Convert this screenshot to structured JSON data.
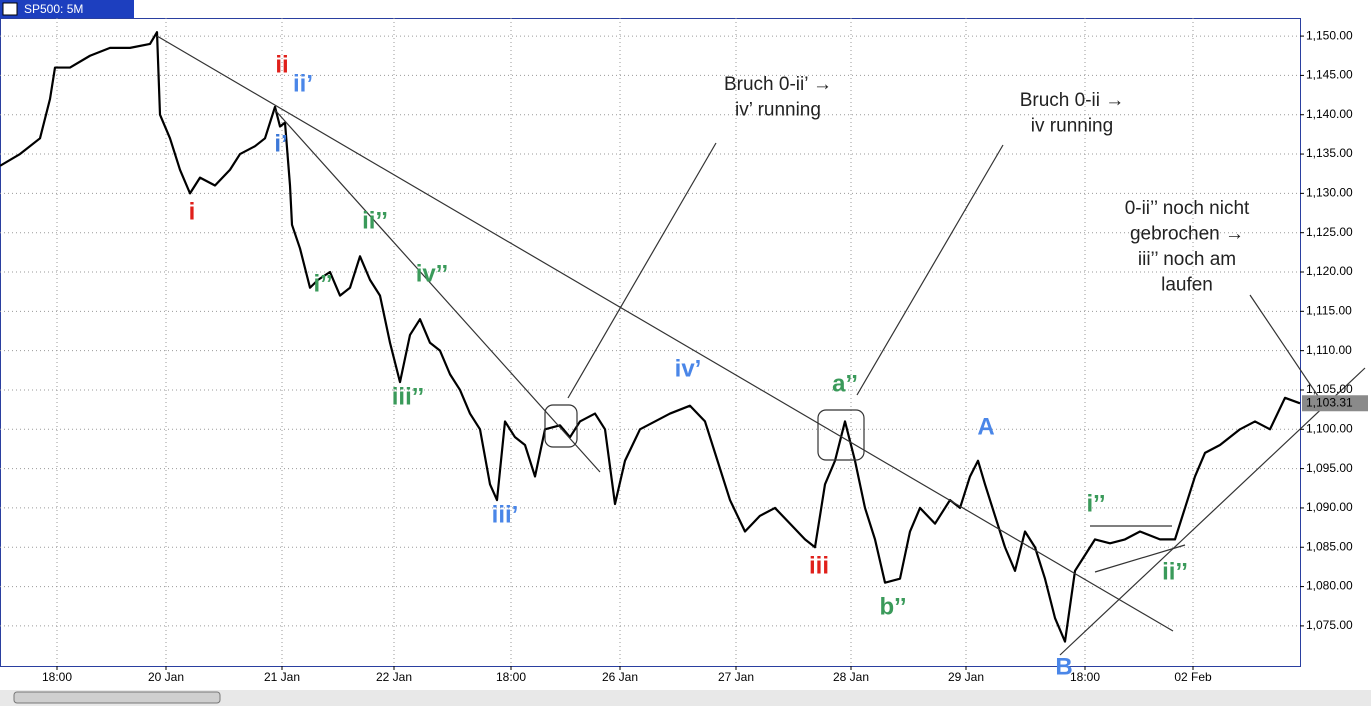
{
  "chart_data": {
    "type": "line",
    "title": "SP500: 5M",
    "ylim": [
      1069.9,
      1152.3
    ],
    "yticks": [
      {
        "value": 1075,
        "label": "1,075.00"
      },
      {
        "value": 1080,
        "label": "1,080.00"
      },
      {
        "value": 1085,
        "label": "1,085.00"
      },
      {
        "value": 1090,
        "label": "1,090.00"
      },
      {
        "value": 1095,
        "label": "1,095.00"
      },
      {
        "value": 1100,
        "label": "1,100.00"
      },
      {
        "value": 1105,
        "label": "1,105.00"
      },
      {
        "value": 1110,
        "label": "1,110.00"
      },
      {
        "value": 1115,
        "label": "1,115.00"
      },
      {
        "value": 1120,
        "label": "1,120.00"
      },
      {
        "value": 1125,
        "label": "1,125.00"
      },
      {
        "value": 1130,
        "label": "1,130.00"
      },
      {
        "value": 1135,
        "label": "1,135.00"
      },
      {
        "value": 1140,
        "label": "1,140.00"
      },
      {
        "value": 1145,
        "label": "1,145.00"
      },
      {
        "value": 1150,
        "label": "1,150.00"
      }
    ],
    "xlim": [
      0,
      1300
    ],
    "xticks": [
      {
        "value": 57,
        "label": "18:00"
      },
      {
        "value": 166,
        "label": "20 Jan"
      },
      {
        "value": 282,
        "label": "21 Jan"
      },
      {
        "value": 394,
        "label": "22 Jan"
      },
      {
        "value": 511,
        "label": "18:00"
      },
      {
        "value": 620,
        "label": "26 Jan"
      },
      {
        "value": 736,
        "label": "27 Jan"
      },
      {
        "value": 851,
        "label": "28 Jan"
      },
      {
        "value": 966,
        "label": "29 Jan"
      },
      {
        "value": 1085,
        "label": "18:00"
      },
      {
        "value": 1193,
        "label": "02 Feb"
      }
    ],
    "grid": true,
    "current_price": {
      "value": 1103.31,
      "label": "1,103.31"
    },
    "series": [
      {
        "name": "SP500",
        "color": "#000000",
        "x": [
          0,
          20,
          40,
          50,
          55,
          70,
          90,
          110,
          130,
          150,
          157,
          160,
          170,
          180,
          190,
          200,
          215,
          230,
          240,
          255,
          265,
          275,
          280,
          285,
          290,
          292,
          300,
          310,
          318,
          330,
          340,
          350,
          360,
          370,
          380,
          390,
          400,
          410,
          420,
          430,
          440,
          450,
          460,
          470,
          480,
          490,
          497,
          505,
          515,
          525,
          535,
          545,
          560,
          570,
          580,
          595,
          605,
          615,
          625,
          640,
          655,
          670,
          690,
          705,
          715,
          730,
          745,
          760,
          775,
          790,
          805,
          815,
          825,
          835,
          845,
          855,
          865,
          875,
          885,
          900,
          910,
          920,
          935,
          950,
          960,
          970,
          978,
          985,
          995,
          1005,
          1015,
          1025,
          1035,
          1045,
          1055,
          1065,
          1075,
          1085,
          1095,
          1110,
          1125,
          1140,
          1160,
          1175,
          1185,
          1195,
          1205,
          1220,
          1240,
          1255,
          1270,
          1285,
          1300
        ],
        "values": [
          1133.5,
          1135,
          1137,
          1142,
          1146,
          1146,
          1147.5,
          1148.5,
          1148.5,
          1149,
          1150.5,
          1140,
          1137,
          1133,
          1130,
          1132,
          1131,
          1133,
          1135,
          1136,
          1137,
          1141,
          1138.5,
          1139,
          1131,
          1126,
          1123,
          1118,
          1119,
          1120,
          1117,
          1118,
          1122,
          1119,
          1117,
          1111,
          1106,
          1112,
          1114,
          1111,
          1110,
          1107,
          1105,
          1102,
          1100,
          1093,
          1091,
          1101,
          1099,
          1098,
          1094,
          1100,
          1100.5,
          1099,
          1101,
          1102,
          1100,
          1090.5,
          1096,
          1100,
          1101,
          1102,
          1103,
          1101,
          1097,
          1091,
          1087,
          1089,
          1090,
          1088,
          1086,
          1085,
          1093,
          1096,
          1101,
          1096,
          1090,
          1086,
          1080.5,
          1081,
          1087,
          1090,
          1088,
          1091,
          1090,
          1094,
          1096,
          1093,
          1089,
          1085,
          1082,
          1087,
          1085,
          1081,
          1076,
          1073,
          1082,
          1084,
          1086,
          1085.5,
          1086,
          1087,
          1086,
          1086,
          1090,
          1094,
          1097,
          1098,
          1100,
          1101,
          1100,
          1104,
          1103.3
        ]
      }
    ],
    "annotations": [
      {
        "text": "i",
        "color": "#e0201b"
      },
      {
        "text": "ii",
        "color": "#e0201b"
      },
      {
        "text": "ii’",
        "color": "#4a86e8"
      },
      {
        "text": "i’",
        "color": "#3c78d8"
      },
      {
        "text": "ii’’",
        "color": "#3a9a5a"
      },
      {
        "text": "iv’’",
        "color": "#3a9a5a"
      },
      {
        "text": "i’’",
        "color": "#3a9a5a"
      },
      {
        "text": "iii’’",
        "color": "#3a9a5a"
      },
      {
        "text": "iii’",
        "color": "#4a86e8"
      },
      {
        "text": "iv’",
        "color": "#4a86e8"
      },
      {
        "text": "iii",
        "color": "#e0201b"
      },
      {
        "text": "a’’",
        "color": "#3a9a5a"
      },
      {
        "text": "b’’",
        "color": "#3a9a5a"
      },
      {
        "text": "A",
        "color": "#4a86e8"
      },
      {
        "text": "B",
        "color": "#4a86e8"
      },
      {
        "text": "i’’",
        "color": "#3a9a5a"
      },
      {
        "text": "ii’’",
        "color": "#3a9a5a"
      }
    ],
    "notes": [
      [
        "Bruch 0-ii’ →",
        "iv’ running"
      ],
      [
        "Bruch 0-ii →",
        "iv running"
      ],
      [
        "0-ii’’ noch nicht",
        "gebrochen →",
        "iii’’ noch am",
        "laufen"
      ]
    ]
  }
}
